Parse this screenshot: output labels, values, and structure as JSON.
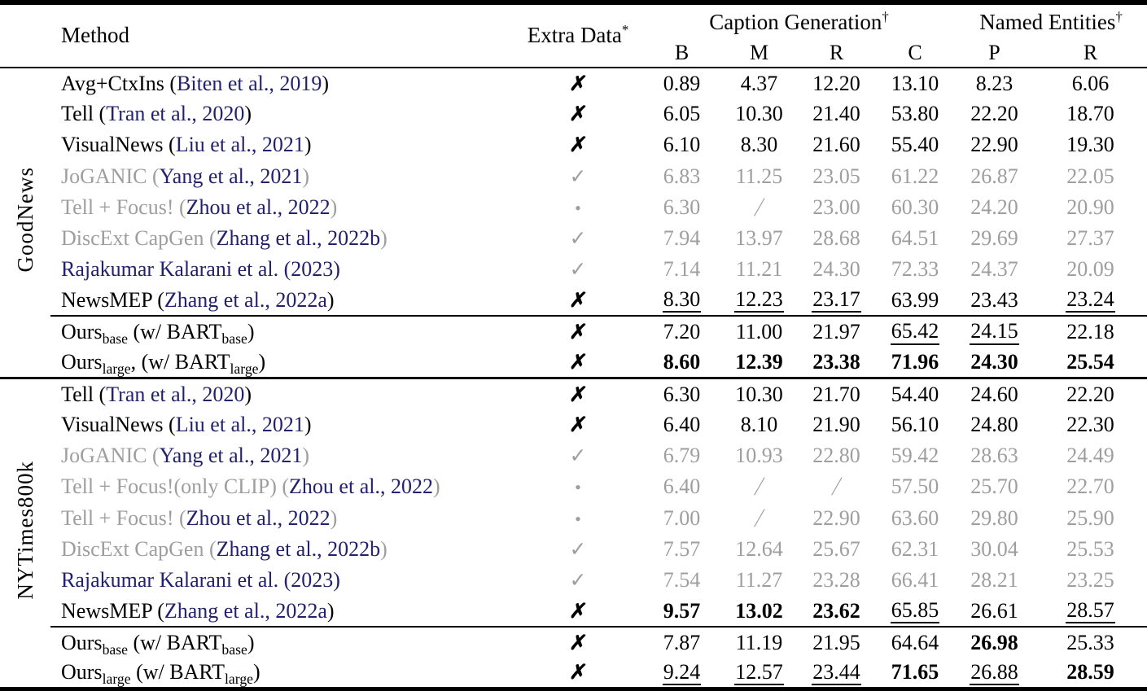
{
  "table": {
    "colors": {
      "link": "#21216e",
      "gray": "#9e9e9e",
      "text": "#000000"
    },
    "icons": {
      "cross": "✗",
      "check": "✓",
      "dot": "•"
    },
    "header": {
      "method": "Method",
      "extra_data": "Extra Data",
      "extra_data_sup": "*",
      "group_caption": "Caption Generation",
      "group_caption_sup": "†",
      "group_entities": "Named Entities",
      "group_entities_sup": "†",
      "subcols": [
        "B",
        "M",
        "R",
        "C",
        "P",
        "R"
      ]
    },
    "sections": [
      {
        "label": "GoodNews",
        "rows": [
          {
            "method": [
              {
                "t": "Avg+CtxIns (",
                "c": "k"
              },
              {
                "t": "Biten et al., 2019",
                "c": "l"
              },
              {
                "t": ")",
                "c": "k"
              }
            ],
            "extra": "cross",
            "dim": false,
            "vals": [
              [
                "0.89",
                "n"
              ],
              [
                "4.37",
                "n"
              ],
              [
                "12.20",
                "n"
              ],
              [
                "13.10",
                "n"
              ],
              [
                "8.23",
                "n"
              ],
              [
                "6.06",
                "n"
              ]
            ]
          },
          {
            "method": [
              {
                "t": "Tell (",
                "c": "k"
              },
              {
                "t": "Tran et al., 2020",
                "c": "l"
              },
              {
                "t": ")",
                "c": "k"
              }
            ],
            "extra": "cross",
            "dim": false,
            "vals": [
              [
                "6.05",
                "n"
              ],
              [
                "10.30",
                "n"
              ],
              [
                "21.40",
                "n"
              ],
              [
                "53.80",
                "n"
              ],
              [
                "22.20",
                "n"
              ],
              [
                "18.70",
                "n"
              ]
            ]
          },
          {
            "method": [
              {
                "t": "VisualNews (",
                "c": "k"
              },
              {
                "t": "Liu et al., 2021",
                "c": "l"
              },
              {
                "t": ")",
                "c": "k"
              }
            ],
            "extra": "cross",
            "dim": false,
            "vals": [
              [
                "6.10",
                "n"
              ],
              [
                "8.30",
                "n"
              ],
              [
                "21.60",
                "n"
              ],
              [
                "55.40",
                "n"
              ],
              [
                "22.90",
                "n"
              ],
              [
                "19.30",
                "n"
              ]
            ]
          },
          {
            "method": [
              {
                "t": "JoGANIC (",
                "c": "g"
              },
              {
                "t": "Yang et al., 2021",
                "c": "l"
              },
              {
                "t": ")",
                "c": "g"
              }
            ],
            "extra": "check",
            "dim": true,
            "vals": [
              [
                "6.83",
                "n"
              ],
              [
                "11.25",
                "n"
              ],
              [
                "23.05",
                "n"
              ],
              [
                "61.22",
                "n"
              ],
              [
                "26.87",
                "n"
              ],
              [
                "22.05",
                "n"
              ]
            ]
          },
          {
            "method": [
              {
                "t": "Tell + Focus! (",
                "c": "g"
              },
              {
                "t": "Zhou et al., 2022",
                "c": "l"
              },
              {
                "t": ")",
                "c": "g"
              }
            ],
            "extra": "dot",
            "dim": true,
            "vals": [
              [
                "6.30",
                "n"
              ],
              [
                "/",
                "n"
              ],
              [
                "23.00",
                "n"
              ],
              [
                "60.30",
                "n"
              ],
              [
                "24.20",
                "n"
              ],
              [
                "20.90",
                "n"
              ]
            ]
          },
          {
            "method": [
              {
                "t": "DiscExt CapGen (",
                "c": "g"
              },
              {
                "t": "Zhang et al., 2022b",
                "c": "l"
              },
              {
                "t": ")",
                "c": "g"
              }
            ],
            "extra": "check",
            "dim": true,
            "vals": [
              [
                "7.94",
                "n"
              ],
              [
                "13.97",
                "n"
              ],
              [
                "28.68",
                "n"
              ],
              [
                "64.51",
                "n"
              ],
              [
                "29.69",
                "n"
              ],
              [
                "27.37",
                "n"
              ]
            ]
          },
          {
            "method": [
              {
                "t": "Rajakumar Kalarani et al. (2023)",
                "c": "l"
              }
            ],
            "extra": "check",
            "dim": true,
            "vals": [
              [
                "7.14",
                "n"
              ],
              [
                "11.21",
                "n"
              ],
              [
                "24.30",
                "n"
              ],
              [
                "72.33",
                "n"
              ],
              [
                "24.37",
                "n"
              ],
              [
                "20.09",
                "n"
              ]
            ]
          },
          {
            "method": [
              {
                "t": "NewsMEP (",
                "c": "k"
              },
              {
                "t": "Zhang et al., 2022a",
                "c": "l"
              },
              {
                "t": ")",
                "c": "k"
              }
            ],
            "extra": "cross",
            "dim": false,
            "vals": [
              [
                "8.30",
                "u"
              ],
              [
                "12.23",
                "u"
              ],
              [
                "23.17",
                "u"
              ],
              [
                "63.99",
                "n"
              ],
              [
                "23.43",
                "n"
              ],
              [
                "23.24",
                "u"
              ]
            ]
          }
        ],
        "ours": [
          {
            "method": [
              {
                "t": "Ours",
                "c": "k"
              },
              {
                "t": "base",
                "c": "k",
                "sub": true
              },
              {
                "t": " (w/ BART",
                "c": "k"
              },
              {
                "t": "base",
                "c": "k",
                "sub": true
              },
              {
                "t": ")",
                "c": "k"
              }
            ],
            "extra": "cross",
            "dim": false,
            "vals": [
              [
                "7.20",
                "n"
              ],
              [
                "11.00",
                "n"
              ],
              [
                "21.97",
                "n"
              ],
              [
                "65.42",
                "u"
              ],
              [
                "24.15",
                "u"
              ],
              [
                "22.18",
                "n"
              ]
            ]
          },
          {
            "method": [
              {
                "t": "Ours",
                "c": "k"
              },
              {
                "t": "large",
                "c": "k",
                "sub": true
              },
              {
                "t": ", (w/ BART",
                "c": "k"
              },
              {
                "t": "large",
                "c": "k",
                "sub": true
              },
              {
                "t": ")",
                "c": "k"
              }
            ],
            "extra": "cross",
            "dim": false,
            "vals": [
              [
                "8.60",
                "b"
              ],
              [
                "12.39",
                "b"
              ],
              [
                "23.38",
                "b"
              ],
              [
                "71.96",
                "b"
              ],
              [
                "24.30",
                "b"
              ],
              [
                "25.54",
                "b"
              ]
            ]
          }
        ]
      },
      {
        "label": "NYTimes800k",
        "rows": [
          {
            "method": [
              {
                "t": "Tell (",
                "c": "k"
              },
              {
                "t": "Tran et al., 2020",
                "c": "l"
              },
              {
                "t": ")",
                "c": "k"
              }
            ],
            "extra": "cross",
            "dim": false,
            "vals": [
              [
                "6.30",
                "n"
              ],
              [
                "10.30",
                "n"
              ],
              [
                "21.70",
                "n"
              ],
              [
                "54.40",
                "n"
              ],
              [
                "24.60",
                "n"
              ],
              [
                "22.20",
                "n"
              ]
            ]
          },
          {
            "method": [
              {
                "t": "VisualNews (",
                "c": "k"
              },
              {
                "t": "Liu et al., 2021",
                "c": "l"
              },
              {
                "t": ")",
                "c": "k"
              }
            ],
            "extra": "cross",
            "dim": false,
            "vals": [
              [
                "6.40",
                "n"
              ],
              [
                "8.10",
                "n"
              ],
              [
                "21.90",
                "n"
              ],
              [
                "56.10",
                "n"
              ],
              [
                "24.80",
                "n"
              ],
              [
                "22.30",
                "n"
              ]
            ]
          },
          {
            "method": [
              {
                "t": "JoGANIC (",
                "c": "g"
              },
              {
                "t": "Yang et al., 2021",
                "c": "l"
              },
              {
                "t": ")",
                "c": "g"
              }
            ],
            "extra": "check",
            "dim": true,
            "vals": [
              [
                "6.79",
                "n"
              ],
              [
                "10.93",
                "n"
              ],
              [
                "22.80",
                "n"
              ],
              [
                "59.42",
                "n"
              ],
              [
                "28.63",
                "n"
              ],
              [
                "24.49",
                "n"
              ]
            ]
          },
          {
            "method": [
              {
                "t": "Tell + Focus!(only CLIP) (",
                "c": "g"
              },
              {
                "t": "Zhou et al., 2022",
                "c": "l"
              },
              {
                "t": ")",
                "c": "g"
              }
            ],
            "extra": "dot",
            "dim": true,
            "vals": [
              [
                "6.40",
                "n"
              ],
              [
                "/",
                "n"
              ],
              [
                "/",
                "n"
              ],
              [
                "57.50",
                "n"
              ],
              [
                "25.70",
                "n"
              ],
              [
                "22.70",
                "n"
              ]
            ]
          },
          {
            "method": [
              {
                "t": "Tell + Focus! (",
                "c": "g"
              },
              {
                "t": "Zhou et al., 2022",
                "c": "l"
              },
              {
                "t": ")",
                "c": "g"
              }
            ],
            "extra": "dot",
            "dim": true,
            "vals": [
              [
                "7.00",
                "n"
              ],
              [
                "/",
                "n"
              ],
              [
                "22.90",
                "n"
              ],
              [
                "63.60",
                "n"
              ],
              [
                "29.80",
                "n"
              ],
              [
                "25.90",
                "n"
              ]
            ]
          },
          {
            "method": [
              {
                "t": "DiscExt CapGen (",
                "c": "g"
              },
              {
                "t": "Zhang et al., 2022b",
                "c": "l"
              },
              {
                "t": ")",
                "c": "g"
              }
            ],
            "extra": "check",
            "dim": true,
            "vals": [
              [
                "7.57",
                "n"
              ],
              [
                "12.64",
                "n"
              ],
              [
                "25.67",
                "n"
              ],
              [
                "62.31",
                "n"
              ],
              [
                "30.04",
                "n"
              ],
              [
                "25.53",
                "n"
              ]
            ]
          },
          {
            "method": [
              {
                "t": "Rajakumar Kalarani et al. (2023)",
                "c": "l"
              }
            ],
            "extra": "check",
            "dim": true,
            "vals": [
              [
                "7.54",
                "n"
              ],
              [
                "11.27",
                "n"
              ],
              [
                "23.28",
                "n"
              ],
              [
                "66.41",
                "n"
              ],
              [
                "28.21",
                "n"
              ],
              [
                "23.25",
                "n"
              ]
            ]
          },
          {
            "method": [
              {
                "t": "NewsMEP (",
                "c": "k"
              },
              {
                "t": "Zhang et al., 2022a",
                "c": "l"
              },
              {
                "t": ")",
                "c": "k"
              }
            ],
            "extra": "cross",
            "dim": false,
            "vals": [
              [
                "9.57",
                "b"
              ],
              [
                "13.02",
                "b"
              ],
              [
                "23.62",
                "b"
              ],
              [
                "65.85",
                "u"
              ],
              [
                "26.61",
                "n"
              ],
              [
                "28.57",
                "u"
              ]
            ]
          }
        ],
        "ours": [
          {
            "method": [
              {
                "t": "Ours",
                "c": "k"
              },
              {
                "t": "base",
                "c": "k",
                "sub": true
              },
              {
                "t": " (w/ BART",
                "c": "k"
              },
              {
                "t": "base",
                "c": "k",
                "sub": true
              },
              {
                "t": ")",
                "c": "k"
              }
            ],
            "extra": "cross",
            "dim": false,
            "vals": [
              [
                "7.87",
                "n"
              ],
              [
                "11.19",
                "n"
              ],
              [
                "21.95",
                "n"
              ],
              [
                "64.64",
                "n"
              ],
              [
                "26.98",
                "b"
              ],
              [
                "25.33",
                "n"
              ]
            ]
          },
          {
            "method": [
              {
                "t": "Ours",
                "c": "k"
              },
              {
                "t": "large",
                "c": "k",
                "sub": true
              },
              {
                "t": " (w/ BART",
                "c": "k"
              },
              {
                "t": "large",
                "c": "k",
                "sub": true
              },
              {
                "t": ")",
                "c": "k"
              }
            ],
            "extra": "cross",
            "dim": false,
            "vals": [
              [
                "9.24",
                "u"
              ],
              [
                "12.57",
                "u"
              ],
              [
                "23.44",
                "u"
              ],
              [
                "71.65",
                "b"
              ],
              [
                "26.88",
                "u"
              ],
              [
                "28.59",
                "b"
              ]
            ]
          }
        ]
      }
    ]
  }
}
